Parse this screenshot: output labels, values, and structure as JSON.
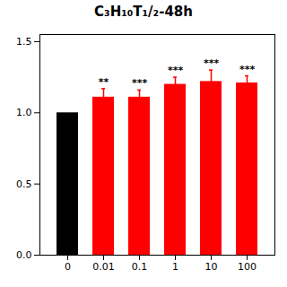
{
  "chart_data": {
    "type": "bar",
    "title": "C₃H₁₀T₁/₂-48h",
    "categories": [
      "0",
      "0.01",
      "0.1",
      "1",
      "10",
      "100"
    ],
    "values": [
      1.0,
      1.11,
      1.11,
      1.2,
      1.22,
      1.21
    ],
    "errors": [
      0.0,
      0.06,
      0.05,
      0.05,
      0.08,
      0.05
    ],
    "colors": [
      "#000000",
      "#ff0000",
      "#ff0000",
      "#ff0000",
      "#ff0000",
      "#ff0000"
    ],
    "significance": [
      null,
      "**",
      "***",
      "***",
      "***",
      "***"
    ],
    "ylim": [
      0.0,
      1.55
    ],
    "yticks": [
      {
        "value": 0.0,
        "label": "0.0"
      },
      0.5,
      {
        "value": 1.0,
        "label": "1.0"
      },
      1.5
    ],
    "grid": false
  }
}
